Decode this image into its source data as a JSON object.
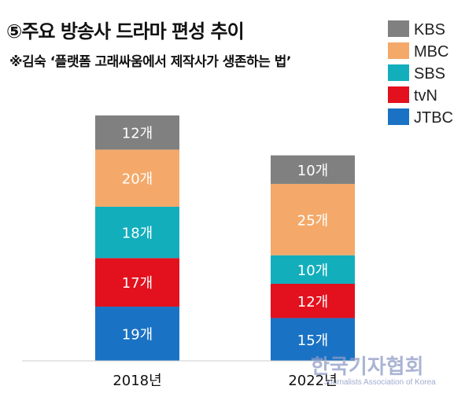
{
  "header": {
    "title": "⑤주요 방송사 드라마 편성 추이",
    "subtitle": "※김숙 ‘플랫폼 고래싸움에서 제작사가 생존하는 법’"
  },
  "chart_data": {
    "type": "bar",
    "stacked": true,
    "title": "⑤주요 방송사 드라마 편성 추이",
    "categories": [
      "2018년",
      "2022년"
    ],
    "unit_suffix": "개",
    "series": [
      {
        "name": "JTBC",
        "color": "#1a72c4",
        "values": [
          19,
          15
        ]
      },
      {
        "name": "tvN",
        "color": "#e3101d",
        "values": [
          17,
          12
        ]
      },
      {
        "name": "SBS",
        "color": "#12aebc",
        "values": [
          18,
          10
        ]
      },
      {
        "name": "MBC",
        "color": "#f4a96a",
        "values": [
          20,
          25
        ]
      },
      {
        "name": "KBS",
        "color": "#808080",
        "values": [
          12,
          10
        ]
      }
    ],
    "legend_order": [
      "KBS",
      "MBC",
      "SBS",
      "tvN",
      "JTBC"
    ],
    "legend_position": "top-right",
    "grid": false
  },
  "watermark": {
    "main": "한국기자협회",
    "sub": "Journalists Association of Korea"
  }
}
